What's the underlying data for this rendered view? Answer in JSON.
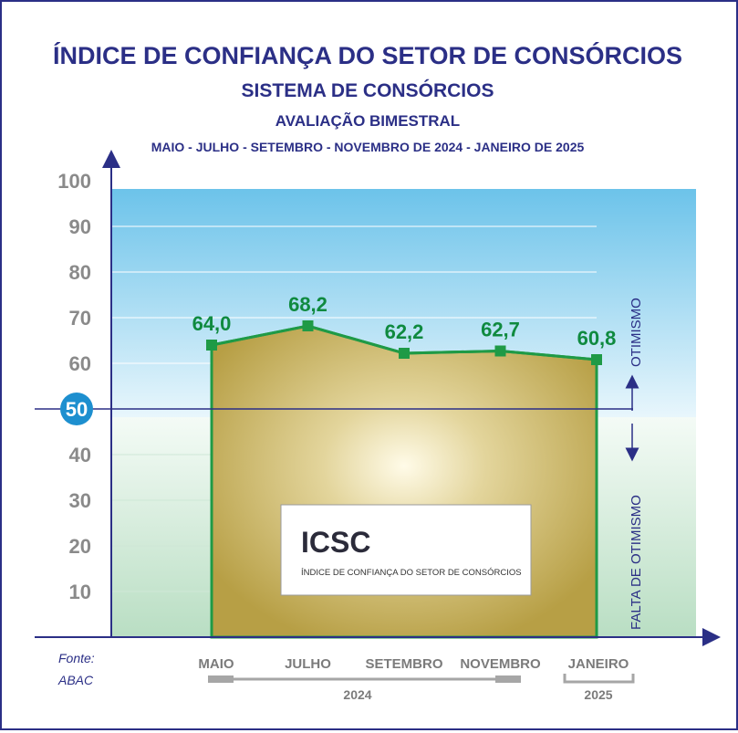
{
  "titles": {
    "main": "ÍNDICE DE CONFIANÇA DO SETOR DE CONSÓRCIOS",
    "sub1": "SISTEMA DE CONSÓRCIOS",
    "sub2": "AVALIAÇÃO BIMESTRAL",
    "sub3": "MAIO - JULHO - SETEMBRO - NOVEMBRO DE 2024 - JANEIRO DE 2025"
  },
  "side_labels": {
    "upper": "OTIMISMO",
    "lower": "FALTA DE OTIMISMO"
  },
  "source": {
    "line1": "Fonte:",
    "line2": "ABAC"
  },
  "logo_box": {
    "title": "ICSC",
    "subtitle": "ÍNDICE DE CONFIANÇA DO SETOR DE CONSÓRCIOS"
  },
  "year_groups": [
    {
      "label": "2024"
    },
    {
      "label": "2025"
    }
  ],
  "colors": {
    "title": "#2b2f86",
    "line": "#1f9a46",
    "value_label": "#0f8a3f",
    "area_fill": "#c9b45a",
    "sky_top": "#6cc3ea",
    "ground_bottom": "#b9dec3",
    "highlight_tick": "#1d8fcf"
  },
  "chart_data": {
    "type": "area",
    "categories": [
      "MAIO",
      "JULHO",
      "SETEMBRO",
      "NOVEMBRO",
      "JANEIRO"
    ],
    "values": [
      64.0,
      68.2,
      62.2,
      62.7,
      60.8
    ],
    "value_labels": [
      "64,0",
      "68,2",
      "62,2",
      "62,7",
      "60,8"
    ],
    "yticks": [
      10,
      20,
      30,
      40,
      50,
      60,
      70,
      80,
      90,
      100
    ],
    "ylim": [
      0,
      100
    ],
    "reference_line": 50,
    "grid": true,
    "legend": "none"
  }
}
